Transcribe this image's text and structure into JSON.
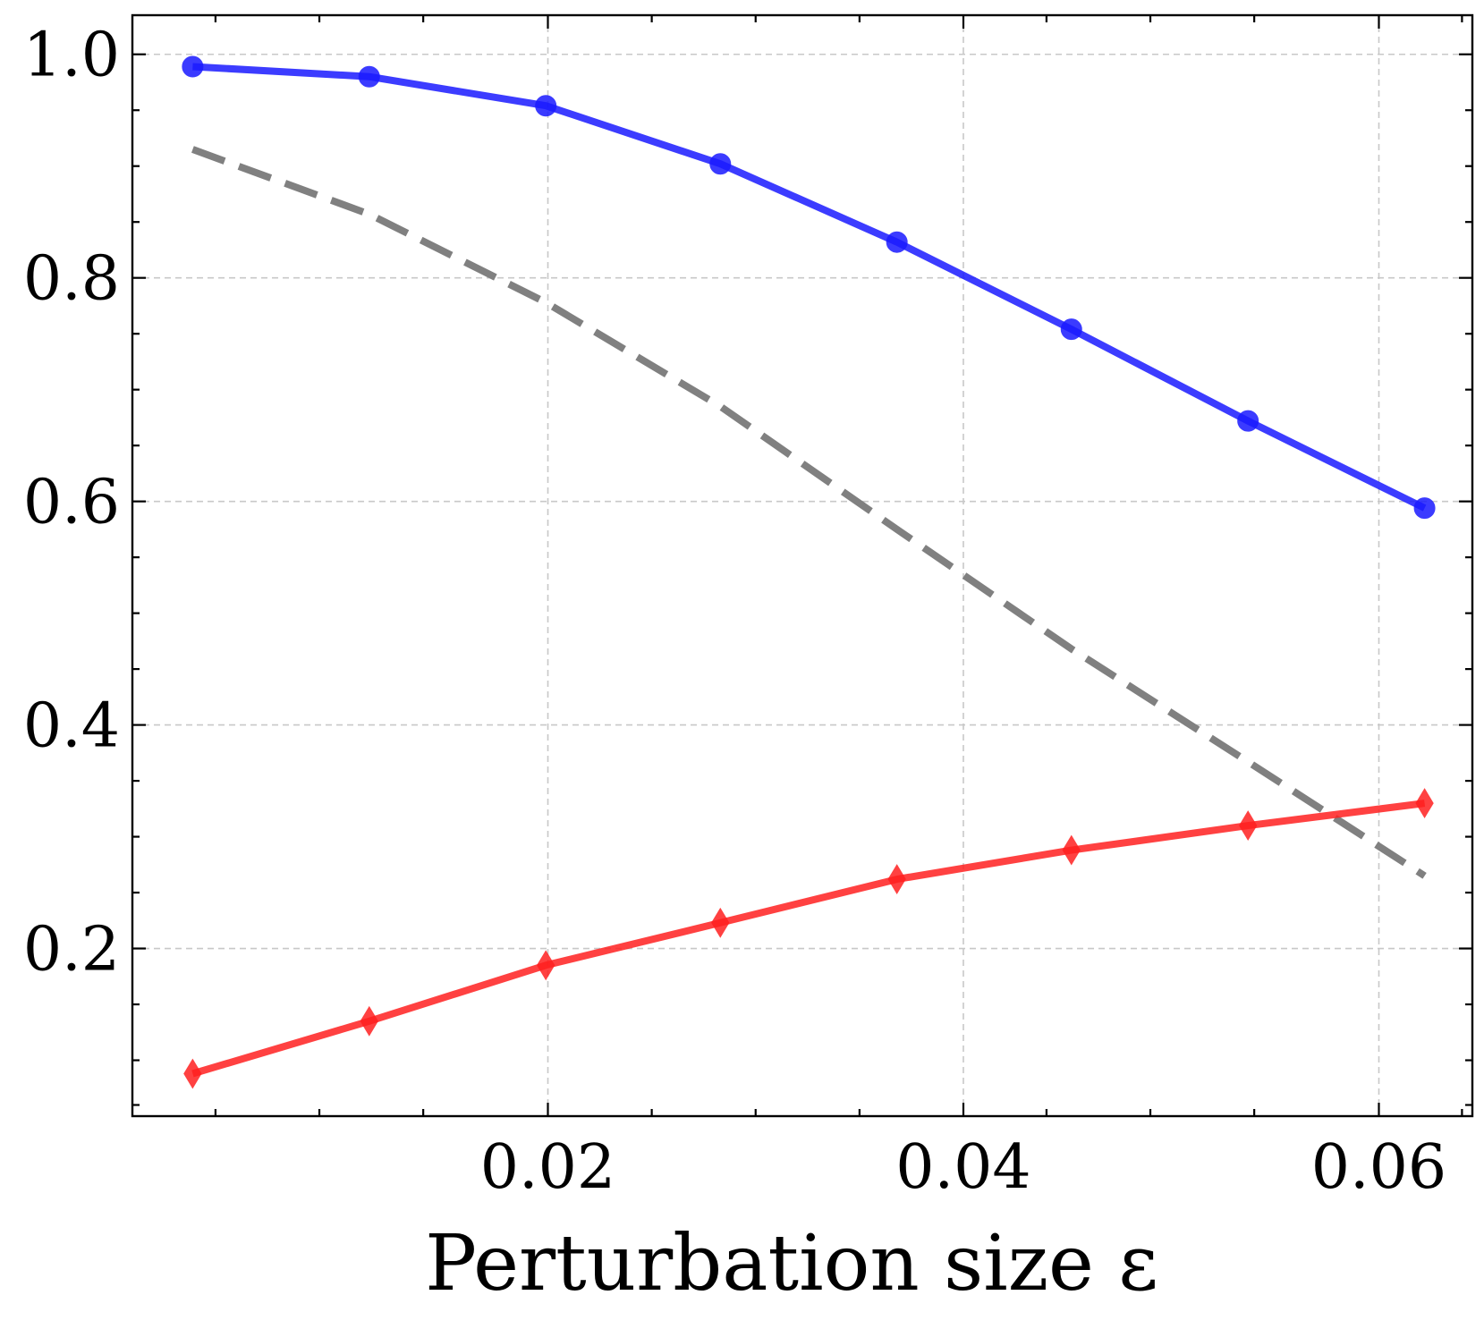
{
  "chart_data": {
    "type": "line",
    "title": "",
    "xlabel": "Perturbation size ε",
    "ylabel": "",
    "xlim": [
      0.0,
      0.0645
    ],
    "ylim": [
      0.05,
      1.035
    ],
    "grid": true,
    "x_ticks": [
      {
        "value": 0.02,
        "label": "0.02"
      },
      {
        "value": 0.04,
        "label": "0.04"
      },
      {
        "value": 0.06,
        "label": "0.06"
      }
    ],
    "x_minor_ticks": [
      0.004,
      0.009,
      0.014,
      0.025,
      0.03,
      0.035,
      0.044,
      0.049,
      0.054,
      0.064
    ],
    "y_ticks": [
      {
        "value": 0.2,
        "label": "0.2"
      },
      {
        "value": 0.4,
        "label": "0.4"
      },
      {
        "value": 0.6,
        "label": "0.6"
      },
      {
        "value": 0.8,
        "label": "0.8"
      },
      {
        "value": 1.0,
        "label": "1.0"
      }
    ],
    "y_minor_ticks": [
      0.06,
      0.1,
      0.15,
      0.25,
      0.3,
      0.35,
      0.45,
      0.5,
      0.55,
      0.65,
      0.7,
      0.75,
      0.85,
      0.9,
      0.95
    ],
    "x": [
      0.0029,
      0.0114,
      0.0199,
      0.0283,
      0.0368,
      0.0452,
      0.0537,
      0.0622
    ],
    "series": [
      {
        "name": "blue",
        "color": "#1a1aff",
        "marker": "circle",
        "dash": false,
        "values": [
          0.989,
          0.98,
          0.954,
          0.902,
          0.832,
          0.754,
          0.672,
          0.594
        ]
      },
      {
        "name": "gray",
        "color": "#808080",
        "marker": "none",
        "dash": true,
        "values": [
          0.915,
          0.857,
          0.778,
          0.685,
          0.575,
          0.468,
          0.367,
          0.265
        ]
      },
      {
        "name": "red",
        "color": "#ff2020",
        "marker": "diamond",
        "dash": false,
        "values": [
          0.088,
          0.135,
          0.185,
          0.223,
          0.262,
          0.288,
          0.31,
          0.33
        ]
      }
    ]
  }
}
